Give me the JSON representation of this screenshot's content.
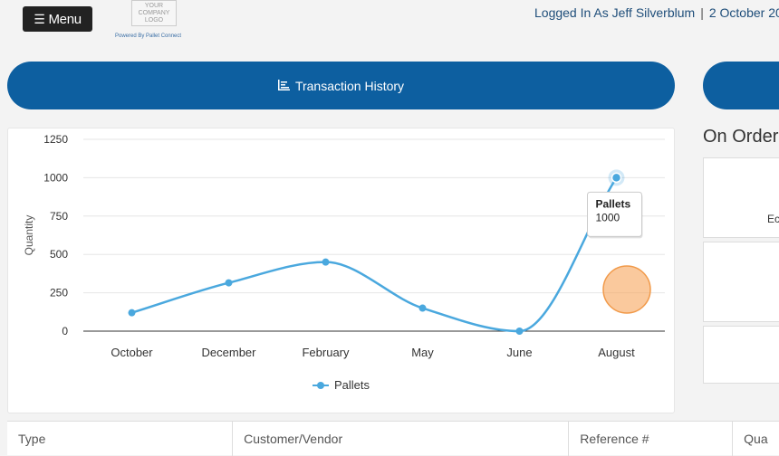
{
  "header": {
    "menu_label": "Menu",
    "logo_text": "YOUR\nCOMPANY\nLOGO",
    "powered_by": "Powered By Pallet Connect",
    "logged_in_text": "Logged In As Jeff Silverblum",
    "separator": "|",
    "date_text": "2 October 20"
  },
  "banners": {
    "transaction_history_label": "Transaction History",
    "accent_color": "#0d5fa0"
  },
  "on_order": {
    "title": "On Order",
    "card_fragment": "Ec"
  },
  "chart_data": {
    "type": "line",
    "categories": [
      "October",
      "December",
      "February",
      "May",
      "June",
      "August"
    ],
    "series": [
      {
        "name": "Pallets",
        "values": [
          120,
          315,
          450,
          150,
          0,
          1000
        ],
        "color": "#4aa8de"
      }
    ],
    "ylabel": "Quantity",
    "xlabel": "",
    "ylim": [
      0,
      1250
    ],
    "yticks": [
      0,
      250,
      500,
      750,
      1000,
      1250
    ],
    "grid": true,
    "legend": "bottom-center",
    "smooth": true,
    "tooltip": {
      "series": "Pallets",
      "value": "1000"
    }
  },
  "table": {
    "columns": [
      "Type",
      "Customer/Vendor",
      "Reference #",
      "Qua"
    ]
  }
}
